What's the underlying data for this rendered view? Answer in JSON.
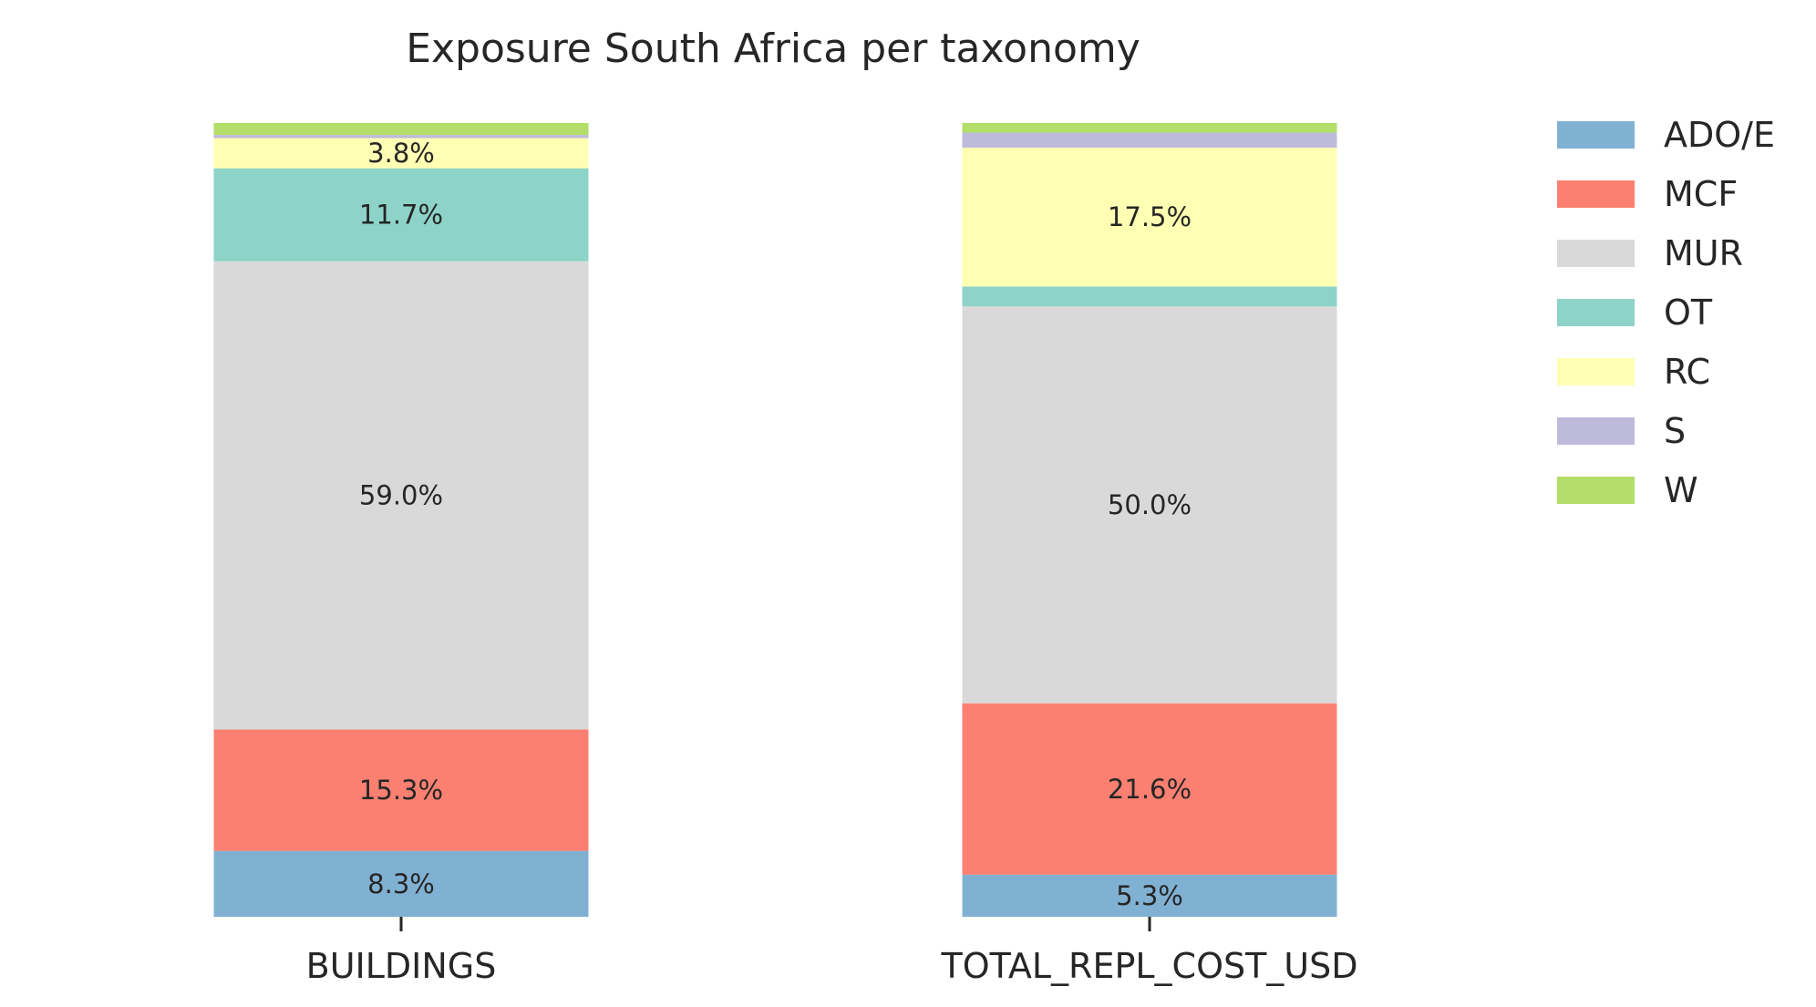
{
  "chart_data": {
    "type": "bar",
    "stacked": true,
    "normalized_percent": true,
    "title": "Exposure South Africa per taxonomy",
    "xlabel": "",
    "ylabel": "",
    "categories": [
      "BUILDINGS",
      "TOTAL_REPL_COST_USD"
    ],
    "ylim": [
      0,
      100
    ],
    "grid": false,
    "legend_position": "right",
    "series": [
      {
        "name": "ADO/E",
        "color": "#80b1d3",
        "values": [
          8.3,
          5.3
        ],
        "labels": [
          "8.3%",
          "5.3%"
        ]
      },
      {
        "name": "MCF",
        "color": "#fb8072",
        "values": [
          15.3,
          21.6
        ],
        "labels": [
          "15.3%",
          "21.6%"
        ]
      },
      {
        "name": "MUR",
        "color": "#d9d9d9",
        "values": [
          59.0,
          50.0
        ],
        "labels": [
          "59.0%",
          "50.0%"
        ]
      },
      {
        "name": "OT",
        "color": "#8dd3c7",
        "values": [
          11.7,
          2.5
        ],
        "labels": [
          "11.7%",
          ""
        ]
      },
      {
        "name": "RC",
        "color": "#ffffb3",
        "values": [
          3.8,
          17.5
        ],
        "labels": [
          "3.8%",
          "17.5%"
        ]
      },
      {
        "name": "S",
        "color": "#bebada",
        "values": [
          0.4,
          1.9
        ],
        "labels": [
          "",
          ""
        ]
      },
      {
        "name": "W",
        "color": "#b3de69",
        "values": [
          1.5,
          1.2
        ],
        "labels": [
          "",
          ""
        ]
      }
    ]
  }
}
